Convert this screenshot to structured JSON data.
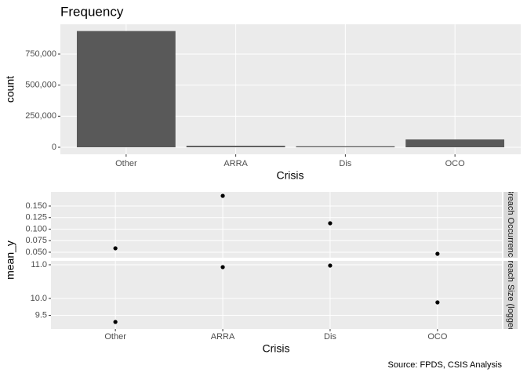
{
  "chart_data": [
    {
      "type": "bar",
      "title": "Frequency",
      "x_label": "Crisis",
      "y_label": "count",
      "categories": [
        "Other",
        "ARRA",
        "Dis",
        "OCO"
      ],
      "values": [
        935000,
        12000,
        8000,
        63000
      ],
      "color": "#595959",
      "ylim": [
        -56700,
        989500
      ],
      "yticks": [
        0,
        {
          "value": 250000,
          "label": "250,000"
        },
        {
          "value": 500000,
          "label": "500,000"
        },
        {
          "value": 750000,
          "label": "750,000"
        }
      ],
      "grid": true
    },
    {
      "type": "scatter",
      "x_label": "Crisis",
      "y_label": "mean_y",
      "categories": [
        "Other",
        "ARRA",
        "Dis",
        "OCO"
      ],
      "color": "#000000",
      "facets": [
        {
          "label": "Breach Occurrence",
          "values": [
            0.0585,
            0.172,
            0.1127,
            0.0466
          ],
          "ylim": [
            0.0381,
            0.1805
          ],
          "yticks": [
            {
              "value": 0.05,
              "label": "0.050"
            },
            {
              "value": 0.075,
              "label": "0.075"
            },
            {
              "value": 0.1,
              "label": "0.100"
            },
            {
              "value": 0.125,
              "label": "0.125"
            },
            {
              "value": 0.15,
              "label": "0.150"
            }
          ]
        },
        {
          "label": "Breach Size (logged)",
          "values": [
            9.302,
            10.93,
            10.977,
            9.884
          ],
          "ylim": [
            9.093,
            11.116
          ],
          "yticks": [
            9.5,
            {
              "value": 10,
              "label": "10.0"
            },
            {
              "value": 11,
              "label": "11.0"
            }
          ]
        }
      ],
      "grid": true,
      "caption": "Source: FPDS, CSIS Analysis"
    }
  ]
}
